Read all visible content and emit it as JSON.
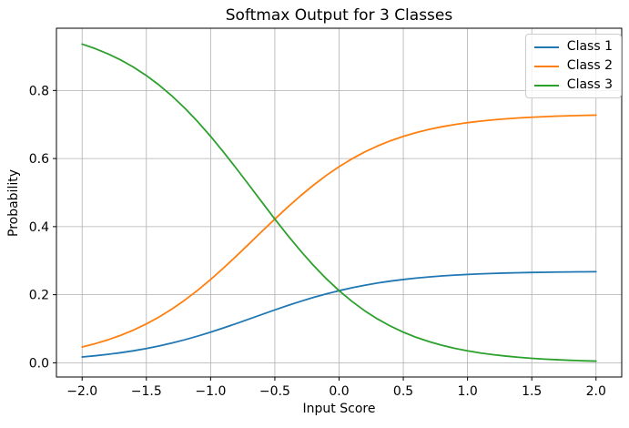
{
  "chart_data": {
    "type": "line",
    "title": "Softmax Output for 3 Classes",
    "xlabel": "Input Score",
    "ylabel": "Probability",
    "xlim": [
      -2.2,
      2.2
    ],
    "ylim": [
      -0.0417,
      0.9828
    ],
    "grid": true,
    "legend": {
      "position": "upper right"
    },
    "colors": {
      "grid": "#b0b0b0",
      "axes": "#000000",
      "background": "#ffffff"
    },
    "xticks": {
      "values": [
        -2.0,
        -1.5,
        -1.0,
        -0.5,
        0.0,
        0.5,
        1.0,
        1.5,
        2.0
      ],
      "labels": [
        "−2.0",
        "−1.5",
        "−1.0",
        "−0.5",
        "0.0",
        "0.5",
        "1.0",
        "1.5",
        "2.0"
      ]
    },
    "yticks": {
      "values": [
        0.0,
        0.2,
        0.4,
        0.6,
        0.8
      ],
      "labels": [
        "0.0",
        "0.2",
        "0.4",
        "0.6",
        "0.8"
      ]
    },
    "x": [
      -2.0,
      -1.9,
      -1.8,
      -1.7,
      -1.6,
      -1.5,
      -1.4,
      -1.3,
      -1.2,
      -1.1,
      -1.0,
      -0.9,
      -0.8,
      -0.7,
      -0.6,
      -0.5,
      -0.4,
      -0.3,
      -0.2,
      -0.1,
      0.0,
      0.1,
      0.2,
      0.3,
      0.4,
      0.5,
      0.6,
      0.7,
      0.8,
      0.9,
      1.0,
      1.1,
      1.2,
      1.3,
      1.4,
      1.5,
      1.6,
      1.7,
      1.8,
      1.9,
      2.0
    ],
    "series": [
      {
        "name": "Class 1",
        "color": "#1f77b4",
        "values": [
          0.0171,
          0.0207,
          0.0248,
          0.0297,
          0.0354,
          0.042,
          0.0496,
          0.0582,
          0.0678,
          0.0785,
          0.09,
          0.1024,
          0.1153,
          0.1286,
          0.1421,
          0.1554,
          0.1682,
          0.1805,
          0.1919,
          0.2024,
          0.2119,
          0.2204,
          0.2279,
          0.2344,
          0.24,
          0.2447,
          0.2488,
          0.2522,
          0.2551,
          0.2575,
          0.2595,
          0.2612,
          0.2625,
          0.2637,
          0.2646,
          0.2654,
          0.266,
          0.2666,
          0.267,
          0.2673,
          0.2676
        ]
      },
      {
        "name": "Class 2",
        "color": "#ff7f0e",
        "values": [
          0.0466,
          0.0561,
          0.0674,
          0.0807,
          0.0962,
          0.1142,
          0.1348,
          0.1582,
          0.1844,
          0.2133,
          0.2447,
          0.2783,
          0.3135,
          0.3497,
          0.3862,
          0.4223,
          0.4573,
          0.4906,
          0.5217,
          0.5503,
          0.5761,
          0.5991,
          0.6194,
          0.637,
          0.6522,
          0.6652,
          0.6763,
          0.6856,
          0.6934,
          0.7,
          0.7054,
          0.7099,
          0.7136,
          0.7167,
          0.7193,
          0.7214,
          0.7231,
          0.7246,
          0.7257,
          0.7267,
          0.7275
        ]
      },
      {
        "name": "Class 3",
        "color": "#2ca02c",
        "values": [
          0.9362,
          0.9232,
          0.9078,
          0.8896,
          0.8684,
          0.8438,
          0.8156,
          0.7836,
          0.7478,
          0.7082,
          0.6652,
          0.6193,
          0.5712,
          0.5217,
          0.4717,
          0.4223,
          0.3744,
          0.3289,
          0.2863,
          0.2473,
          0.2119,
          0.1805,
          0.1527,
          0.1286,
          0.1078,
          0.09,
          0.0749,
          0.0622,
          0.0515,
          0.0426,
          0.0351,
          0.0289,
          0.0238,
          0.0196,
          0.0161,
          0.0132,
          0.0108,
          0.0089,
          0.0073,
          0.006,
          0.0049
        ]
      }
    ]
  }
}
